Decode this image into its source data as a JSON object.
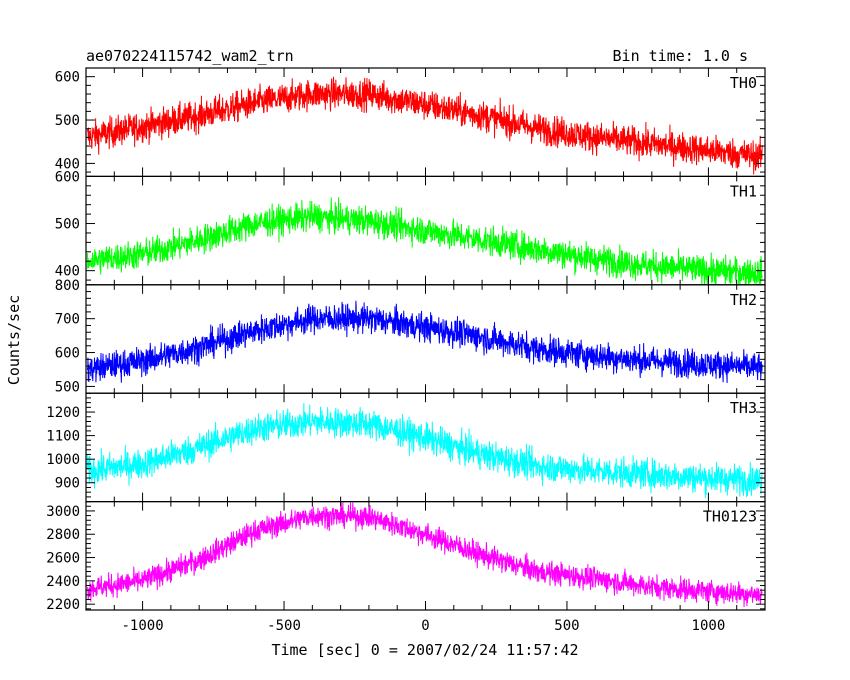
{
  "chart_data": {
    "type": "line",
    "title": "ae070224115742_wam2_trn",
    "subtitle": "Bin time: 1.0 s",
    "xlabel": "Time [sec] 0 = 2007/02/24 11:57:42",
    "ylabel": "Counts/sec",
    "xlim": [
      -1200,
      1200
    ],
    "xticks": [
      "-1000",
      "-500",
      "0",
      "500",
      "1000"
    ],
    "grid": false,
    "panels": [
      {
        "name": "TH0",
        "color": "#ff0000",
        "ylim": [
          370,
          620
        ],
        "yticks": [
          "400",
          "500",
          "600"
        ],
        "x": [
          -1200,
          -1000,
          -800,
          -600,
          -400,
          -200,
          0,
          200,
          400,
          600,
          800,
          1000,
          1200
        ],
        "y": [
          460,
          485,
          510,
          540,
          560,
          560,
          535,
          510,
          480,
          460,
          445,
          430,
          415
        ],
        "noise": 25
      },
      {
        "name": "TH1",
        "color": "#00ff00",
        "ylim": [
          370,
          600
        ],
        "yticks": [
          "400",
          "500",
          "600"
        ],
        "x": [
          -1200,
          -1000,
          -800,
          -600,
          -400,
          -200,
          0,
          200,
          400,
          600,
          800,
          1000,
          1200
        ],
        "y": [
          420,
          435,
          465,
          500,
          515,
          505,
          485,
          465,
          445,
          425,
          410,
          400,
          395
        ],
        "noise": 22
      },
      {
        "name": "TH2",
        "color": "#0000ff",
        "ylim": [
          480,
          800
        ],
        "yticks": [
          "500",
          "600",
          "700",
          "800"
        ],
        "x": [
          -1200,
          -1000,
          -800,
          -600,
          -400,
          -200,
          0,
          200,
          400,
          600,
          800,
          1000,
          1200
        ],
        "y": [
          550,
          575,
          615,
          665,
          700,
          700,
          675,
          645,
          610,
          590,
          575,
          565,
          555
        ],
        "noise": 30
      },
      {
        "name": "TH3",
        "color": "#00ffff",
        "ylim": [
          820,
          1280
        ],
        "yticks": [
          "900",
          "1000",
          "1100",
          "1200"
        ],
        "x": [
          -1200,
          -1000,
          -800,
          -600,
          -400,
          -200,
          0,
          200,
          400,
          600,
          800,
          1000,
          1200
        ],
        "y": [
          950,
          980,
          1050,
          1130,
          1160,
          1150,
          1090,
          1020,
          970,
          950,
          935,
          920,
          910
        ],
        "noise": 45
      },
      {
        "name": "TH0123",
        "color": "#ff00ff",
        "ylim": [
          2150,
          3080
        ],
        "yticks": [
          "2200",
          "2400",
          "2600",
          "2800",
          "3000"
        ],
        "x": [
          -1200,
          -1000,
          -800,
          -600,
          -400,
          -200,
          0,
          200,
          400,
          600,
          800,
          1000,
          1200
        ],
        "y": [
          2330,
          2400,
          2580,
          2830,
          2960,
          2950,
          2800,
          2620,
          2480,
          2420,
          2350,
          2310,
          2280
        ],
        "noise": 70
      }
    ]
  }
}
